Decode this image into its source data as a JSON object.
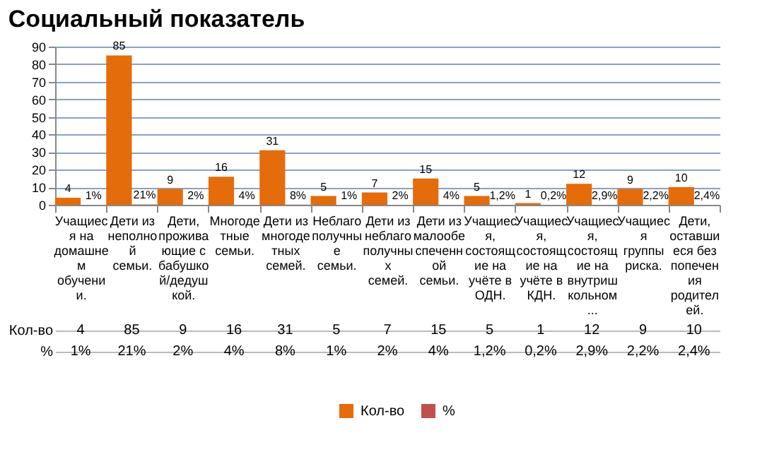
{
  "chart_data": {
    "type": "bar",
    "title": "Социальный показатель",
    "categories": [
      "Учащиеся на домашнем обучении.",
      "Дети из неполной семьи.",
      "Дети, проживающие с бабушкой/дедушкой.",
      "Многодетные семьи.",
      "Дети из многодетных семей.",
      "Неблагополучные семьи.",
      "Дети из неблагополучных семей.",
      "Дети из малообеспеченной семьи.",
      "Учащиеся, состоящие на учёте в ОДН.",
      "Учащиеся, состоящие на учёте в КДН.",
      "Учащиеся, состоящие на внутришкольном...",
      "Учащиеся группы риска.",
      "Дети, оставшиеся без попечения родителей."
    ],
    "series": [
      {
        "name": "Кол-во",
        "color": "#e46c0a",
        "values": [
          4,
          85,
          9,
          16,
          31,
          5,
          7,
          15,
          5,
          1,
          12,
          9,
          10
        ],
        "value_labels": [
          "4",
          "85",
          "9",
          "16",
          "31",
          "5",
          "7",
          "15",
          "5",
          "1",
          "12",
          "9",
          "10"
        ]
      },
      {
        "name": "%",
        "color": "#c0504d",
        "values": [
          0.01,
          0.21,
          0.02,
          0.04,
          0.08,
          0.01,
          0.02,
          0.04,
          0.012,
          0.002,
          0.029,
          0.022,
          0.024
        ],
        "value_labels": [
          "1%",
          "21%",
          "2%",
          "4%",
          "8%",
          "1%",
          "2%",
          "4%",
          "1,2%",
          "0,2%",
          "2,9%",
          "2,2%",
          "2,4%"
        ]
      }
    ],
    "ylim": [
      0,
      90
    ],
    "yticks": [
      0,
      10,
      20,
      30,
      40,
      50,
      60,
      70,
      80,
      90
    ],
    "grid": "y",
    "legend": "bottom"
  }
}
